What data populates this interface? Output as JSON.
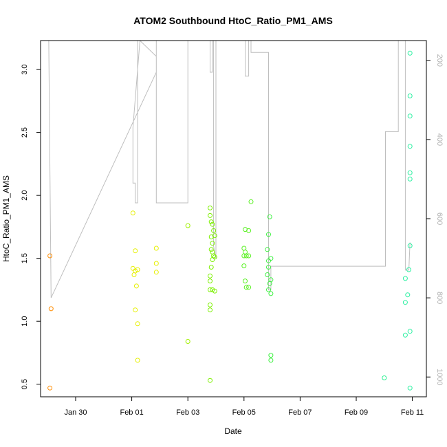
{
  "chart_data": {
    "type": "scatter",
    "title": "ATOM2 Southbound HtoC_Ratio_PM1_AMS",
    "xlabel": "Date",
    "ylabel": "HtoC_Ratio_PM1_AMS",
    "x_range": [
      "2022-01-28T18:00",
      "2022-02-11T12:00"
    ],
    "x_ticks": [
      "Jan 30",
      "Feb 01",
      "Feb 03",
      "Feb 05",
      "Feb 07",
      "Feb 09",
      "Feb 11"
    ],
    "x_tick_dates": [
      "2022-01-30",
      "2022-02-01",
      "2022-02-03",
      "2022-02-05",
      "2022-02-07",
      "2022-02-09",
      "2022-02-11"
    ],
    "ylim": [
      0.4,
      3.23
    ],
    "y_ticks": [
      "0.5",
      "1.0",
      "1.5",
      "2.0",
      "2.5",
      "3.0"
    ],
    "y2_range": [
      1050,
      150
    ],
    "y2_ticks": [
      "200",
      "400",
      "600",
      "800",
      "1000"
    ],
    "grid": false,
    "points": [
      {
        "x": "2022-01-29T02:00",
        "y": 1.52,
        "color": "#ff8c00"
      },
      {
        "x": "2022-01-29T03:00",
        "y": 1.1,
        "color": "#ff8c00"
      },
      {
        "x": "2022-01-29T02:00",
        "y": 0.47,
        "color": "#ff8c00"
      },
      {
        "x": "2022-02-01T01:00",
        "y": 1.86,
        "color": "#e6f000"
      },
      {
        "x": "2022-02-01T03:00",
        "y": 1.56,
        "color": "#e6f000"
      },
      {
        "x": "2022-02-01T01:00",
        "y": 1.42,
        "color": "#e6f000"
      },
      {
        "x": "2022-02-01T03:00",
        "y": 1.4,
        "color": "#e6f000"
      },
      {
        "x": "2022-02-01T05:00",
        "y": 1.41,
        "color": "#e6f000"
      },
      {
        "x": "2022-02-01T02:00",
        "y": 1.37,
        "color": "#e6f000"
      },
      {
        "x": "2022-02-01T04:00",
        "y": 1.28,
        "color": "#e6f000"
      },
      {
        "x": "2022-02-01T03:00",
        "y": 1.09,
        "color": "#e6f000"
      },
      {
        "x": "2022-02-01T05:00",
        "y": 0.98,
        "color": "#e6f000"
      },
      {
        "x": "2022-02-01T05:00",
        "y": 0.69,
        "color": "#e6f000"
      },
      {
        "x": "2022-02-01T21:00",
        "y": 1.58,
        "color": "#e6f000"
      },
      {
        "x": "2022-02-01T21:00",
        "y": 1.46,
        "color": "#e6f000"
      },
      {
        "x": "2022-02-01T21:00",
        "y": 1.39,
        "color": "#e6f000"
      },
      {
        "x": "2022-02-03T00:00",
        "y": 1.76,
        "color": "#a0f000"
      },
      {
        "x": "2022-02-03T00:00",
        "y": 0.84,
        "color": "#a0f000"
      },
      {
        "x": "2022-02-03T19:00",
        "y": 1.9,
        "color": "#7cf000"
      },
      {
        "x": "2022-02-03T19:00",
        "y": 1.84,
        "color": "#7cf000"
      },
      {
        "x": "2022-02-03T20:00",
        "y": 1.79,
        "color": "#7cf000"
      },
      {
        "x": "2022-02-03T21:00",
        "y": 1.77,
        "color": "#7cf000"
      },
      {
        "x": "2022-02-03T22:00",
        "y": 1.72,
        "color": "#7cf000"
      },
      {
        "x": "2022-02-03T20:00",
        "y": 1.67,
        "color": "#7cf000"
      },
      {
        "x": "2022-02-03T23:00",
        "y": 1.68,
        "color": "#7cf000"
      },
      {
        "x": "2022-02-03T21:00",
        "y": 1.62,
        "color": "#7cf000"
      },
      {
        "x": "2022-02-03T20:00",
        "y": 1.57,
        "color": "#7cf000"
      },
      {
        "x": "2022-02-03T21:00",
        "y": 1.55,
        "color": "#7cf000"
      },
      {
        "x": "2022-02-03T22:00",
        "y": 1.52,
        "color": "#7cf000"
      },
      {
        "x": "2022-02-03T23:00",
        "y": 1.51,
        "color": "#7cf000"
      },
      {
        "x": "2022-02-03T21:00",
        "y": 1.49,
        "color": "#7cf000"
      },
      {
        "x": "2022-02-03T20:00",
        "y": 1.43,
        "color": "#7cf000"
      },
      {
        "x": "2022-02-03T19:00",
        "y": 1.36,
        "color": "#7cf000"
      },
      {
        "x": "2022-02-03T19:00",
        "y": 1.32,
        "color": "#7cf000"
      },
      {
        "x": "2022-02-03T19:00",
        "y": 1.25,
        "color": "#7cf000"
      },
      {
        "x": "2022-02-03T21:00",
        "y": 1.25,
        "color": "#7cf000"
      },
      {
        "x": "2022-02-03T23:00",
        "y": 1.24,
        "color": "#7cf000"
      },
      {
        "x": "2022-02-03T19:00",
        "y": 1.13,
        "color": "#7cf000"
      },
      {
        "x": "2022-02-03T19:00",
        "y": 1.09,
        "color": "#7cf000"
      },
      {
        "x": "2022-02-03T19:00",
        "y": 0.53,
        "color": "#7cf000"
      },
      {
        "x": "2022-02-05T01:00",
        "y": 1.73,
        "color": "#58f020"
      },
      {
        "x": "2022-02-05T04:00",
        "y": 1.72,
        "color": "#58f020"
      },
      {
        "x": "2022-02-05T06:00",
        "y": 1.95,
        "color": "#58f020"
      },
      {
        "x": "2022-02-05T00:00",
        "y": 1.58,
        "color": "#58f020"
      },
      {
        "x": "2022-02-05T01:00",
        "y": 1.55,
        "color": "#58f020"
      },
      {
        "x": "2022-02-05T00:00",
        "y": 1.52,
        "color": "#58f020"
      },
      {
        "x": "2022-02-05T02:00",
        "y": 1.52,
        "color": "#58f020"
      },
      {
        "x": "2022-02-05T04:00",
        "y": 1.52,
        "color": "#58f020"
      },
      {
        "x": "2022-02-05T00:00",
        "y": 1.44,
        "color": "#58f020"
      },
      {
        "x": "2022-02-05T01:00",
        "y": 1.32,
        "color": "#58f020"
      },
      {
        "x": "2022-02-05T02:00",
        "y": 1.27,
        "color": "#58f020"
      },
      {
        "x": "2022-02-05T04:00",
        "y": 1.27,
        "color": "#58f020"
      },
      {
        "x": "2022-02-05T22:00",
        "y": 1.83,
        "color": "#3cf040"
      },
      {
        "x": "2022-02-05T21:00",
        "y": 1.69,
        "color": "#3cf040"
      },
      {
        "x": "2022-02-05T20:00",
        "y": 1.57,
        "color": "#3cf040"
      },
      {
        "x": "2022-02-05T23:00",
        "y": 1.5,
        "color": "#3cf040"
      },
      {
        "x": "2022-02-05T21:00",
        "y": 1.48,
        "color": "#3cf040"
      },
      {
        "x": "2022-02-05T21:00",
        "y": 1.43,
        "color": "#3cf040"
      },
      {
        "x": "2022-02-05T20:00",
        "y": 1.37,
        "color": "#3cf040"
      },
      {
        "x": "2022-02-05T23:00",
        "y": 1.33,
        "color": "#3cf040"
      },
      {
        "x": "2022-02-05T22:00",
        "y": 1.3,
        "color": "#3cf040"
      },
      {
        "x": "2022-02-05T21:00",
        "y": 1.25,
        "color": "#3cf040"
      },
      {
        "x": "2022-02-05T23:00",
        "y": 1.22,
        "color": "#3cf040"
      },
      {
        "x": "2022-02-05T23:00",
        "y": 0.73,
        "color": "#3cf040"
      },
      {
        "x": "2022-02-05T23:00",
        "y": 0.69,
        "color": "#3cf040"
      },
      {
        "x": "2022-02-10T00:00",
        "y": 0.55,
        "color": "#28f090"
      },
      {
        "x": "2022-02-10T22:00",
        "y": 3.13,
        "color": "#28f0a0"
      },
      {
        "x": "2022-02-10T22:00",
        "y": 2.79,
        "color": "#28f0a0"
      },
      {
        "x": "2022-02-10T22:00",
        "y": 2.63,
        "color": "#28f0a0"
      },
      {
        "x": "2022-02-10T22:00",
        "y": 2.39,
        "color": "#28f0a0"
      },
      {
        "x": "2022-02-10T22:00",
        "y": 2.18,
        "color": "#28f0a0"
      },
      {
        "x": "2022-02-10T22:00",
        "y": 2.13,
        "color": "#28f0a0"
      },
      {
        "x": "2022-02-10T22:00",
        "y": 1.6,
        "color": "#28f0a0"
      },
      {
        "x": "2022-02-10T21:00",
        "y": 1.41,
        "color": "#28f0a0"
      },
      {
        "x": "2022-02-10T18:00",
        "y": 1.34,
        "color": "#28f0a0"
      },
      {
        "x": "2022-02-10T20:00",
        "y": 1.21,
        "color": "#28f0a0"
      },
      {
        "x": "2022-02-10T18:00",
        "y": 1.15,
        "color": "#28f0a0"
      },
      {
        "x": "2022-02-10T22:00",
        "y": 0.92,
        "color": "#28f0a0"
      },
      {
        "x": "2022-02-10T18:00",
        "y": 0.89,
        "color": "#28f0a0"
      },
      {
        "x": "2022-02-10T22:00",
        "y": 0.47,
        "color": "#28f0a0"
      }
    ],
    "secondary_line": {
      "name": "",
      "color": "#bebebe",
      "x": [
        "2022-01-29T00:00",
        "2022-01-29T01:00",
        "2022-01-29T03:00",
        "2022-02-01T21:00",
        "2022-02-01T21:00",
        "2022-02-01T07:00",
        "2022-02-01T01:00",
        "2022-02-01T01:00",
        "2022-02-01T03:00",
        "2022-02-01T03:00",
        "2022-02-01T05:00",
        "2022-02-01T05:00",
        "2022-02-01T21:00",
        "2022-02-01T21:00",
        "2022-02-03T00:00",
        "2022-02-03T00:00",
        "2022-02-03T19:00",
        "2022-02-03T19:00",
        "2022-02-03T21:00",
        "2022-02-03T21:00",
        "2022-02-03T22:00",
        "2022-02-03T22:00",
        "2022-02-04T00:00",
        "2022-02-04T00:00",
        "2022-02-05T01:00",
        "2022-02-05T01:00",
        "2022-02-05T04:00",
        "2022-02-05T04:00",
        "2022-02-05T06:00",
        "2022-02-05T06:00",
        "2022-02-05T21:00",
        "2022-02-05T21:00",
        "2022-02-05T23:00",
        "2022-02-05T23:00",
        "2022-02-10T01:00",
        "2022-02-10T01:00",
        "2022-02-10T12:00",
        "2022-02-10T12:00",
        "2022-02-10T18:00",
        "2022-02-10T18:00",
        "2022-02-10T21:00",
        "2022-02-10T22:00"
      ],
      "y": [
        80,
        150,
        800,
        230,
        190,
        150,
        370,
        510,
        510,
        560,
        560,
        150,
        150,
        560,
        560,
        150,
        150,
        230,
        230,
        150,
        150,
        670,
        700,
        150,
        150,
        240,
        240,
        150,
        150,
        180,
        180,
        780,
        780,
        720,
        720,
        380,
        380,
        150,
        150,
        730,
        730,
        660
      ]
    }
  }
}
